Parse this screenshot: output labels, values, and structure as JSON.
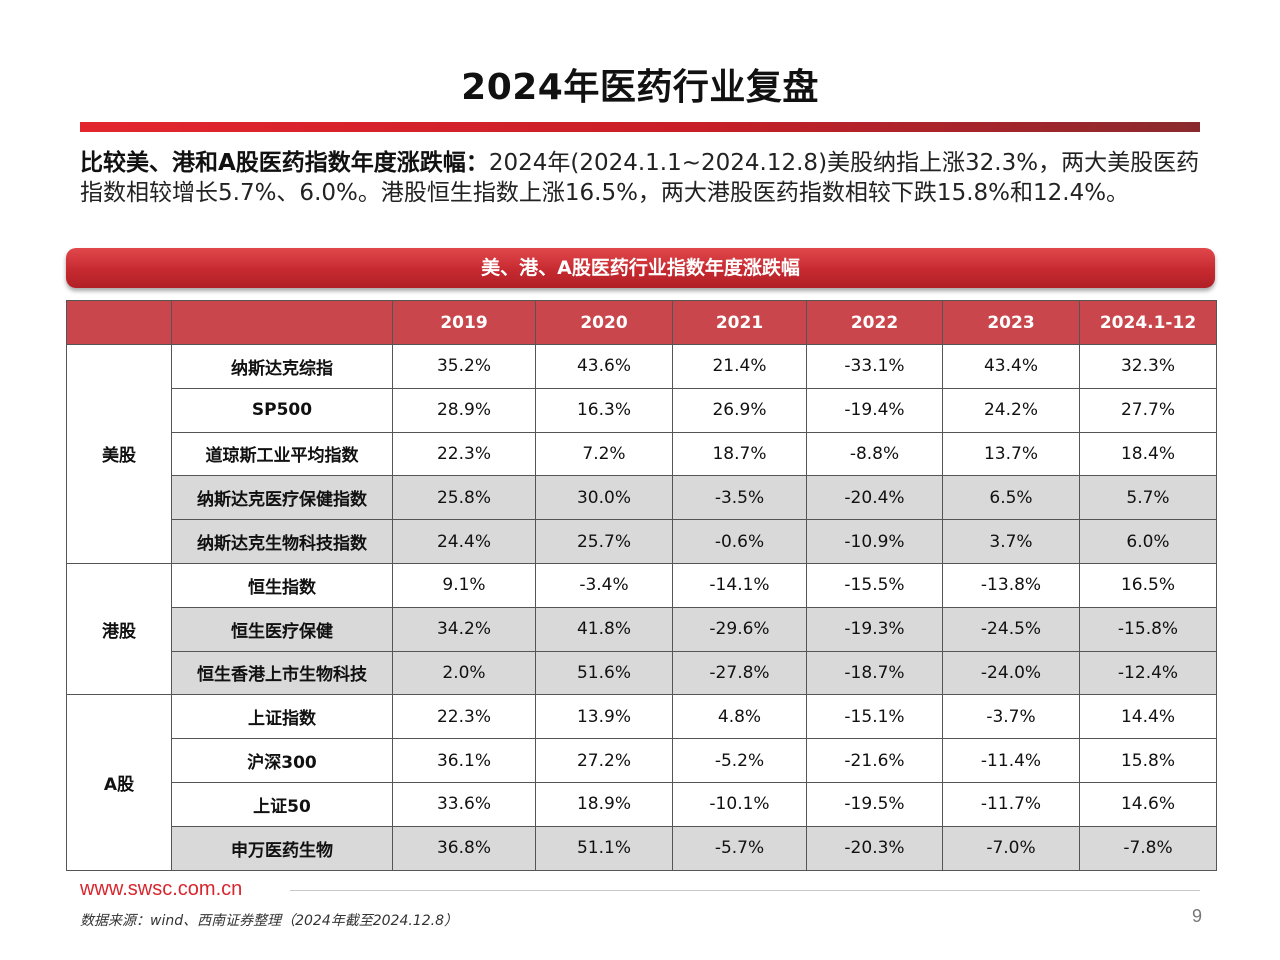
{
  "title": "2024年医药行业复盘",
  "summary": {
    "lead": "比较美、港和A股医药指数年度涨跌幅：",
    "text": "2024年(2024.1.1~2024.12.8)美股纳指上涨32.3%，两大美股医药指数相较增长5.7%、6.0%。港股恒生指数上涨16.5%，两大港股医药指数相较下跌15.8%和12.4%。"
  },
  "banner": "美、港、A股医药行业指数年度涨跌幅",
  "table": {
    "columns": [
      "",
      "",
      "2019",
      "2020",
      "2021",
      "2022",
      "2023",
      "2024.1-12"
    ],
    "groups": [
      {
        "name": "美股",
        "rows": [
          {
            "name": "纳斯达克综指",
            "values": [
              "35.2%",
              "43.6%",
              "21.4%",
              "-33.1%",
              "43.4%",
              "32.3%"
            ],
            "shaded": false
          },
          {
            "name": "SP500",
            "values": [
              "28.9%",
              "16.3%",
              "26.9%",
              "-19.4%",
              "24.2%",
              "27.7%"
            ],
            "shaded": false
          },
          {
            "name": "道琼斯工业平均指数",
            "values": [
              "22.3%",
              "7.2%",
              "18.7%",
              "-8.8%",
              "13.7%",
              "18.4%"
            ],
            "shaded": false
          },
          {
            "name": "纳斯达克医疗保健指数",
            "values": [
              "25.8%",
              "30.0%",
              "-3.5%",
              "-20.4%",
              "6.5%",
              "5.7%"
            ],
            "shaded": true
          },
          {
            "name": "纳斯达克生物科技指数",
            "values": [
              "24.4%",
              "25.7%",
              "-0.6%",
              "-10.9%",
              "3.7%",
              "6.0%"
            ],
            "shaded": true
          }
        ]
      },
      {
        "name": "港股",
        "rows": [
          {
            "name": "恒生指数",
            "values": [
              "9.1%",
              "-3.4%",
              "-14.1%",
              "-15.5%",
              "-13.8%",
              "16.5%"
            ],
            "shaded": false
          },
          {
            "name": "恒生医疗保健",
            "values": [
              "34.2%",
              "41.8%",
              "-29.6%",
              "-19.3%",
              "-24.5%",
              "-15.8%"
            ],
            "shaded": true
          },
          {
            "name": "恒生香港上市生物科技",
            "values": [
              "2.0%",
              "51.6%",
              "-27.8%",
              "-18.7%",
              "-24.0%",
              "-12.4%"
            ],
            "shaded": true
          }
        ]
      },
      {
        "name": "A股",
        "rows": [
          {
            "name": "上证指数",
            "values": [
              "22.3%",
              "13.9%",
              "4.8%",
              "-15.1%",
              "-3.7%",
              "14.4%"
            ],
            "shaded": false
          },
          {
            "name": "沪深300",
            "values": [
              "36.1%",
              "27.2%",
              "-5.2%",
              "-21.6%",
              "-11.4%",
              "15.8%"
            ],
            "shaded": false
          },
          {
            "name": "上证50",
            "values": [
              "33.6%",
              "18.9%",
              "-10.1%",
              "-19.5%",
              "-11.7%",
              "14.6%"
            ],
            "shaded": false
          },
          {
            "name": "申万医药生物",
            "values": [
              "36.8%",
              "51.1%",
              "-5.7%",
              "-20.3%",
              "-7.0%",
              "-7.8%"
            ],
            "shaded": true
          }
        ]
      }
    ]
  },
  "footer": {
    "url": "www.swsc.com.cn",
    "source": "数据来源：wind、西南证券整理（2024年截至2024.12.8）",
    "page": "9"
  },
  "colors": {
    "accent_red": "#d8262e",
    "header_red": "#c9474c",
    "row_shade": "#d9d9d9"
  }
}
